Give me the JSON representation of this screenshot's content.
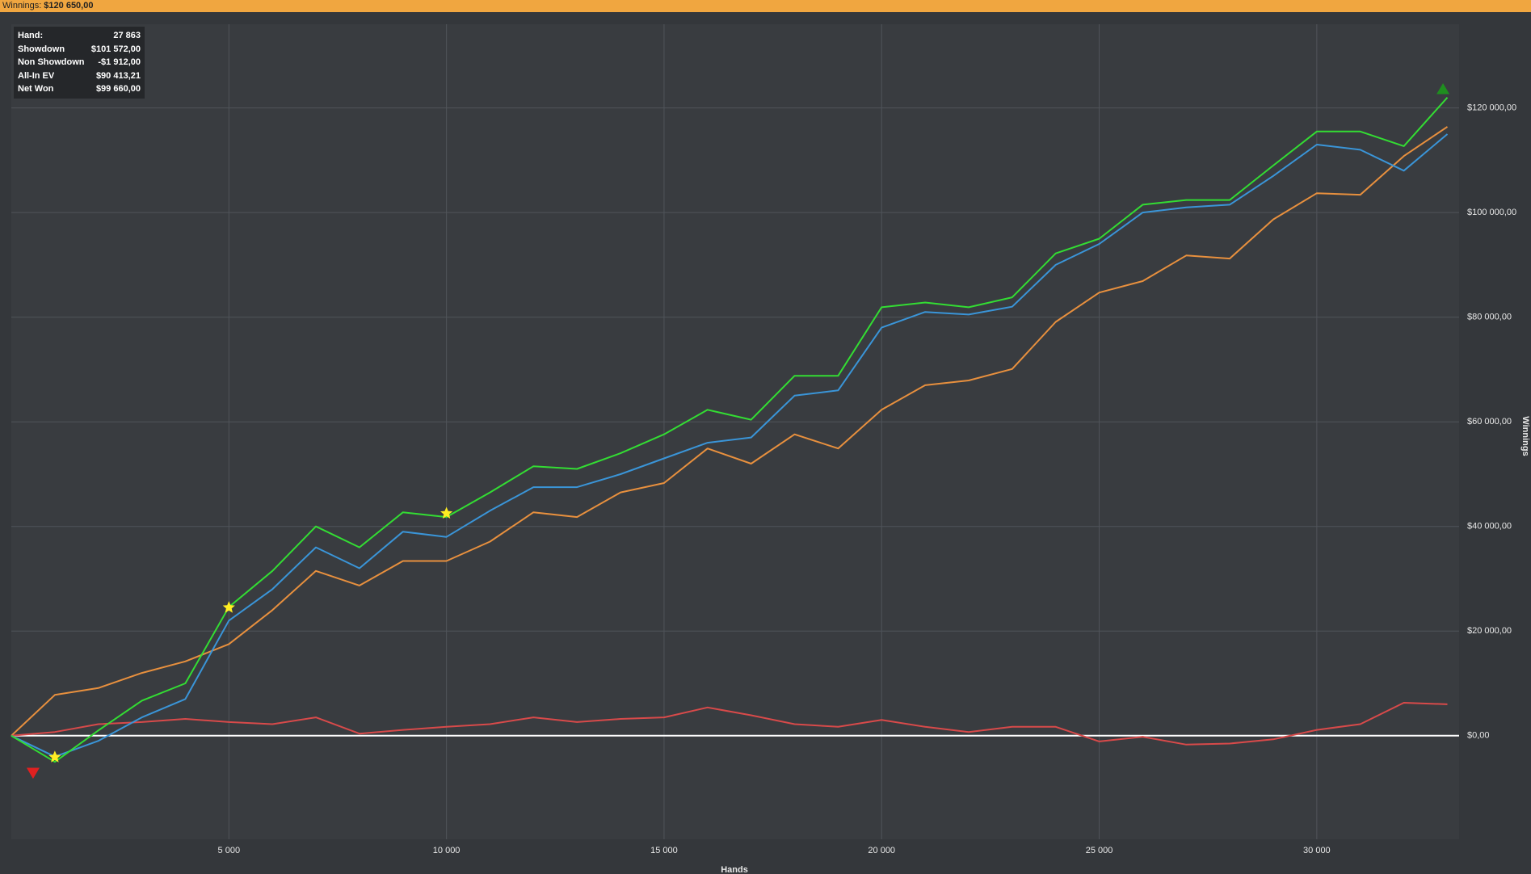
{
  "header": {
    "label": "Winnings:",
    "value": "$120 650,00"
  },
  "stats": [
    {
      "label": "Hand:",
      "value": "27 863"
    },
    {
      "label": "Showdown",
      "value": "$101 572,00"
    },
    {
      "label": "Non Showdown",
      "value": "-$1 912,00"
    },
    {
      "label": "All-In EV",
      "value": "$90 413,21"
    },
    {
      "label": "Net Won",
      "value": "$99 660,00"
    }
  ],
  "chart_data": {
    "type": "line",
    "x_label": "Hands",
    "y_label": "Winnings",
    "xlim": [
      0,
      33270
    ],
    "ylim": [
      -19800,
      136000
    ],
    "grid": true,
    "xticks": [
      {
        "value": 5000,
        "label": "5 000"
      },
      {
        "value": 10000,
        "label": "10 000"
      },
      {
        "value": 15000,
        "label": "15 000"
      },
      {
        "value": 20000,
        "label": "20 000"
      },
      {
        "value": 25000,
        "label": "25 000"
      },
      {
        "value": 30000,
        "label": "30 000"
      }
    ],
    "yticks": [
      {
        "value": 0,
        "label": "$0,00"
      },
      {
        "value": 20000,
        "label": "$20 000,00"
      },
      {
        "value": 40000,
        "label": "$40 000,00"
      },
      {
        "value": 60000,
        "label": "$60 000,00"
      },
      {
        "value": 80000,
        "label": "$80 000,00"
      },
      {
        "value": 100000,
        "label": "$100 000,00"
      },
      {
        "value": 120000,
        "label": "$120 000,00"
      }
    ],
    "x": [
      0,
      1000,
      2000,
      3000,
      4000,
      5000,
      6000,
      7000,
      8000,
      9000,
      10000,
      11000,
      12000,
      13000,
      14000,
      15000,
      16000,
      17000,
      18000,
      19000,
      20000,
      21000,
      22000,
      23000,
      24000,
      25000,
      26000,
      27000,
      28000,
      29000,
      30000,
      31000,
      32000,
      33000
    ],
    "series": [
      {
        "color": "#e8903e",
        "values": [
          0,
          7800,
          9100,
          12000,
          14200,
          17500,
          24000,
          31500,
          28700,
          33400,
          33400,
          37100,
          42700,
          41800,
          46500,
          48300,
          54900,
          52000,
          57600,
          54900,
          62300,
          67000,
          67900,
          70100,
          79100,
          84700,
          86900,
          91800,
          91200,
          98700,
          103700,
          103400,
          110800,
          116400
        ]
      },
      {
        "color": "#d84a4a",
        "values": [
          0,
          700,
          2200,
          2600,
          3200,
          2600,
          2200,
          3500,
          400,
          1100,
          1700,
          2200,
          3500,
          2600,
          3200,
          3500,
          5400,
          3900,
          2200,
          1700,
          3000,
          1700,
          700,
          1700,
          1700,
          -1100,
          -200,
          -1700,
          -1500,
          -700,
          1100,
          2200,
          6300,
          6000
        ]
      },
      {
        "color": "#3a95d8",
        "values": [
          0,
          -4000,
          -1000,
          3500,
          7000,
          22000,
          28000,
          36000,
          32000,
          39000,
          38000,
          43000,
          47500,
          47500,
          50000,
          53000,
          56000,
          57000,
          65000,
          66000,
          78000,
          81000,
          80500,
          82000,
          90000,
          94000,
          100000,
          101000,
          101500,
          107000,
          113000,
          112000,
          108000,
          115000
        ]
      },
      {
        "color": "#33dd33",
        "values": [
          0,
          -5000,
          1000,
          6700,
          10000,
          24600,
          31500,
          40000,
          36000,
          42700,
          41800,
          46500,
          51500,
          51000,
          54000,
          57600,
          62300,
          60400,
          68800,
          68800,
          81900,
          82800,
          81900,
          83800,
          92200,
          95000,
          101500,
          102400,
          102400,
          109000,
          115500,
          115500,
          112700,
          122000
        ]
      }
    ],
    "markers": [
      {
        "x": 500,
        "y": -7000,
        "color": "#e02020",
        "shape": "triangle-down"
      },
      {
        "x": 1000,
        "y": -4100,
        "color": "#ffee22",
        "shape": "star"
      },
      {
        "x": 5000,
        "y": 24500,
        "color": "#ffee22",
        "shape": "star"
      },
      {
        "x": 10000,
        "y": 42500,
        "color": "#ffee22",
        "shape": "star"
      },
      {
        "x": 32900,
        "y": 123500,
        "color": "#1f8f1f",
        "shape": "triangle-up"
      }
    ]
  }
}
